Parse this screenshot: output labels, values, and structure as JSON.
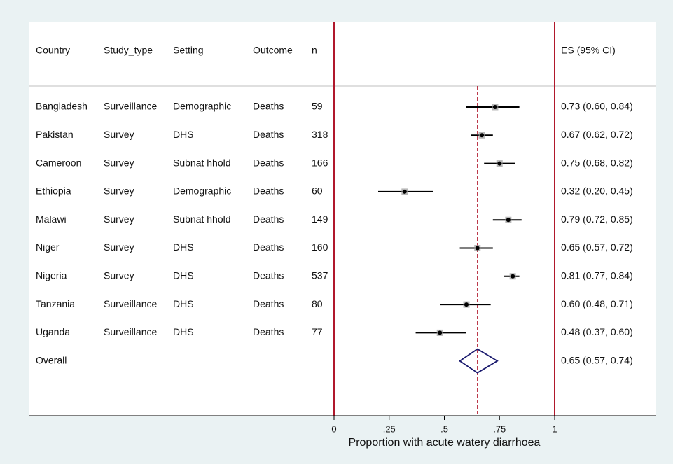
{
  "chart_data": {
    "type": "forest",
    "columns": [
      "Country",
      "Study_type",
      "Setting",
      "Outcome",
      "n"
    ],
    "es_header": "ES (95% CI)",
    "rows": [
      {
        "country": "Bangladesh",
        "study_type": "Surveillance",
        "setting": "Demographic",
        "outcome": "Deaths",
        "n": "59",
        "es": 0.73,
        "lo": 0.6,
        "hi": 0.84,
        "es_label": "0.73 (0.60, 0.84)"
      },
      {
        "country": "Pakistan",
        "study_type": "Survey",
        "setting": "DHS",
        "outcome": "Deaths",
        "n": "318",
        "es": 0.67,
        "lo": 0.62,
        "hi": 0.72,
        "es_label": "0.67 (0.62, 0.72)"
      },
      {
        "country": "Cameroon",
        "study_type": "Survey",
        "setting": "Subnat hhold",
        "outcome": "Deaths",
        "n": "166",
        "es": 0.75,
        "lo": 0.68,
        "hi": 0.82,
        "es_label": "0.75 (0.68, 0.82)"
      },
      {
        "country": "Ethiopia",
        "study_type": "Survey",
        "setting": "Demographic",
        "outcome": "Deaths",
        "n": "60",
        "es": 0.32,
        "lo": 0.2,
        "hi": 0.45,
        "es_label": "0.32 (0.20, 0.45)"
      },
      {
        "country": "Malawi",
        "study_type": "Survey",
        "setting": "Subnat hhold",
        "outcome": "Deaths",
        "n": "149",
        "es": 0.79,
        "lo": 0.72,
        "hi": 0.85,
        "es_label": "0.79 (0.72, 0.85)"
      },
      {
        "country": "Niger",
        "study_type": "Survey",
        "setting": "DHS",
        "outcome": "Deaths",
        "n": "160",
        "es": 0.65,
        "lo": 0.57,
        "hi": 0.72,
        "es_label": "0.65 (0.57, 0.72)"
      },
      {
        "country": "Nigeria",
        "study_type": "Survey",
        "setting": "DHS",
        "outcome": "Deaths",
        "n": "537",
        "es": 0.81,
        "lo": 0.77,
        "hi": 0.84,
        "es_label": "0.81 (0.77, 0.84)"
      },
      {
        "country": "Tanzania",
        "study_type": "Surveillance",
        "setting": "DHS",
        "outcome": "Deaths",
        "n": "80",
        "es": 0.6,
        "lo": 0.48,
        "hi": 0.71,
        "es_label": "0.60 (0.48, 0.71)"
      },
      {
        "country": "Uganda",
        "study_type": "Surveillance",
        "setting": "DHS",
        "outcome": "Deaths",
        "n": "77",
        "es": 0.48,
        "lo": 0.37,
        "hi": 0.6,
        "es_label": "0.48 (0.37, 0.60)"
      }
    ],
    "overall": {
      "label": "Overall",
      "es": 0.65,
      "lo": 0.57,
      "hi": 0.74,
      "es_label": "0.65 (0.57, 0.74)"
    },
    "x_ticks": [
      {
        "value": 0,
        "label": "0"
      },
      {
        "value": 0.25,
        "label": ".25"
      },
      {
        "value": 0.5,
        "label": ".5"
      },
      {
        "value": 0.75,
        "label": ".75"
      },
      {
        "value": 1,
        "label": "1"
      }
    ],
    "xlim": [
      0,
      1
    ],
    "xlabel": "Proportion with acute watery diarrhoea",
    "colors": {
      "bounds": "#b0182c",
      "overall_line": "#b0182c",
      "diamond": "#1a1a6e",
      "ci": "#000000",
      "point": "#000000",
      "weight_box": "#9a9a9a",
      "background": "#eaf2f3"
    }
  }
}
